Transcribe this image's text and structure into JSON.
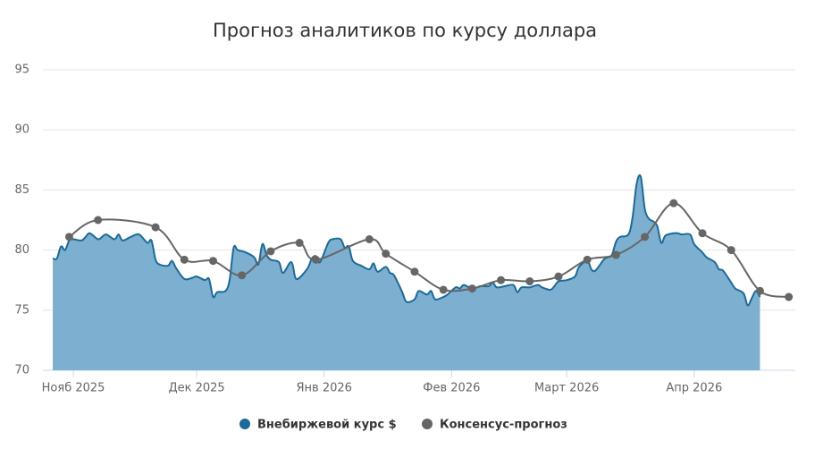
{
  "chart_data": {
    "type": "area_line",
    "title": "Прогноз аналитиков по курсу доллара",
    "xlim": [
      -7.4,
      175.6
    ],
    "xticks": [
      {
        "value": 0,
        "label": "Нояб 2025"
      },
      {
        "value": 30,
        "label": "Дек 2025"
      },
      {
        "value": 61,
        "label": "Янв 2026"
      },
      {
        "value": 92,
        "label": "Фев 2026"
      },
      {
        "value": 120,
        "label": "Март 2026"
      },
      {
        "value": 151,
        "label": "Апр 2026"
      }
    ],
    "ylim": [
      70,
      95
    ],
    "yticks": [
      70,
      75,
      80,
      85,
      90,
      95
    ],
    "grid": true,
    "series": [
      {
        "name": "Внебиржевой курс $",
        "color": "#1b6a98",
        "fill": "#7dafd0",
        "kind": "area",
        "x": [
          -5,
          -4,
          -3,
          -2,
          -1,
          0,
          2,
          3,
          4,
          6,
          7,
          8,
          10,
          11,
          12,
          14,
          16,
          18,
          19,
          20,
          21,
          23,
          24,
          25,
          27,
          29,
          30,
          32,
          33,
          34,
          35,
          37,
          38,
          39,
          40,
          42,
          44,
          45,
          46,
          47,
          48,
          50,
          51,
          53,
          54,
          55,
          57,
          58,
          59,
          60,
          62,
          63,
          65,
          66,
          67,
          68,
          70,
          72,
          73,
          74,
          76,
          77,
          78,
          80,
          81,
          83,
          84,
          86,
          87,
          88,
          90,
          91,
          93,
          94,
          95,
          97,
          99,
          101,
          102,
          103,
          105,
          107,
          108,
          109,
          111,
          113,
          114,
          116,
          117,
          118,
          120,
          122,
          123,
          125,
          126,
          127,
          129,
          130,
          131,
          132,
          133,
          135,
          136,
          137,
          138,
          139,
          140,
          141,
          142,
          143,
          144,
          146,
          147,
          148,
          150,
          151,
          153,
          154,
          156,
          157,
          158,
          160,
          161,
          163,
          164,
          165,
          166,
          167
        ],
        "values": [
          79.3,
          79.3,
          80.3,
          80.0,
          80.8,
          80.9,
          80.8,
          81.1,
          81.4,
          80.9,
          81.1,
          81.3,
          80.9,
          81.3,
          80.8,
          81.1,
          81.3,
          80.6,
          80.8,
          79.2,
          78.8,
          78.7,
          79.1,
          78.5,
          77.6,
          77.7,
          77.8,
          77.5,
          77.6,
          76.1,
          76.5,
          76.6,
          77.5,
          80.2,
          80.0,
          79.8,
          79.4,
          78.8,
          80.5,
          79.6,
          79.2,
          79.0,
          78.1,
          79.0,
          77.7,
          77.7,
          78.5,
          79.3,
          79.5,
          79.0,
          80.6,
          80.9,
          80.9,
          80.2,
          80.3,
          79.1,
          78.7,
          78.4,
          78.9,
          78.2,
          78.6,
          78.1,
          77.9,
          76.5,
          75.7,
          75.9,
          76.6,
          76.3,
          76.6,
          75.9,
          76.1,
          76.3,
          76.9,
          76.8,
          77.1,
          76.8,
          77.0,
          77.0,
          77.3,
          76.9,
          77.0,
          77.1,
          76.5,
          76.9,
          76.9,
          77.1,
          76.9,
          76.7,
          77.0,
          77.4,
          77.5,
          77.8,
          78.6,
          79.1,
          78.4,
          78.3,
          79.2,
          79.4,
          79.6,
          80.7,
          81.1,
          81.3,
          82.7,
          85.5,
          86.1,
          83.4,
          82.6,
          82.4,
          82.0,
          80.6,
          81.2,
          81.4,
          81.4,
          81.3,
          81.3,
          80.5,
          79.8,
          79.4,
          79.0,
          78.4,
          78.3,
          77.3,
          76.8,
          76.4,
          75.4,
          76.0,
          76.6,
          76.1
        ]
      },
      {
        "name": "Консенсус-прогноз",
        "color": "#666666",
        "kind": "line",
        "x": [
          -1,
          6,
          20,
          27,
          34,
          41,
          48,
          55,
          59,
          72,
          76,
          83,
          90,
          97,
          104,
          111,
          118,
          125,
          132,
          139,
          146,
          153,
          160,
          167,
          174
        ],
        "values": [
          81.1,
          82.5,
          81.9,
          79.2,
          79.1,
          77.9,
          79.9,
          80.6,
          79.2,
          80.9,
          79.7,
          78.2,
          76.7,
          76.8,
          77.5,
          77.4,
          77.8,
          79.2,
          79.6,
          81.1,
          83.9,
          81.4,
          80.0,
          76.6,
          76.1
        ]
      }
    ]
  }
}
